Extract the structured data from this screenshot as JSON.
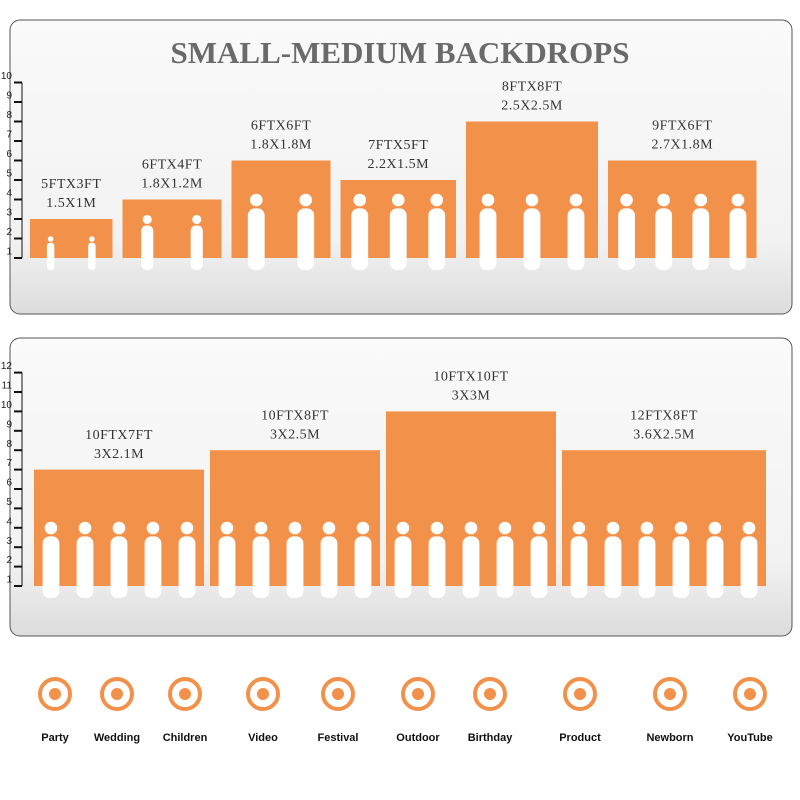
{
  "panels": [
    {
      "title": "SMALL-MEDIUM BACKDROPS",
      "ylim": [
        1,
        10
      ],
      "yticks": [
        1,
        2,
        3,
        4,
        5,
        6,
        7,
        8,
        9,
        10
      ],
      "backdrops": [
        {
          "label": "5FTX3FT",
          "metric": "1.5X1M",
          "width": 5,
          "height": 3
        },
        {
          "label": "6FTX4FT",
          "metric": "1.8X1.2M",
          "width": 6,
          "height": 4
        },
        {
          "label": "6FTX6FT",
          "metric": "1.8X1.8M",
          "width": 6,
          "height": 6
        },
        {
          "label": "7FTX5FT",
          "metric": "2.2X1.5M",
          "width": 7,
          "height": 5
        },
        {
          "label": "8FTX8FT",
          "metric": "2.5X2.5M",
          "width": 8,
          "height": 8
        },
        {
          "label": "9FTX6FT",
          "metric": "2.7X1.8M",
          "width": 9,
          "height": 6
        }
      ]
    },
    {
      "ylim": [
        1,
        12
      ],
      "yticks": [
        1,
        2,
        3,
        4,
        5,
        6,
        7,
        8,
        9,
        10,
        11,
        12
      ],
      "backdrops": [
        {
          "label": "10FTX7FT",
          "metric": "3X2.1M",
          "width": 10,
          "height": 7
        },
        {
          "label": "10FTX8FT",
          "metric": "3X2.5M",
          "width": 10,
          "height": 8
        },
        {
          "label": "10FTX10FT",
          "metric": "3X3M",
          "width": 10,
          "height": 10
        },
        {
          "label": "12FTX8FT",
          "metric": "3.6X2.5M",
          "width": 12,
          "height": 8
        }
      ]
    }
  ],
  "occasions": [
    "Party",
    "Wedding",
    "Children",
    "Video",
    "Festival",
    "Outdoor",
    "Birthday",
    "Product",
    "Newborn",
    "YouTube"
  ],
  "color": "#f2914a"
}
